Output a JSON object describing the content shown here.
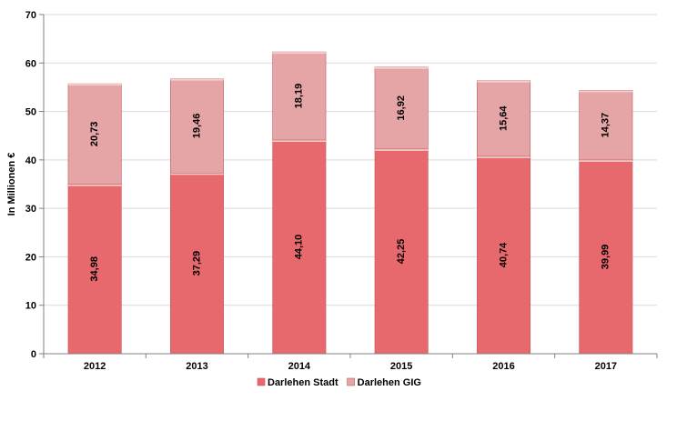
{
  "chart_data": {
    "type": "bar",
    "stacked": true,
    "categories": [
      "2012",
      "2013",
      "2014",
      "2015",
      "2016",
      "2017"
    ],
    "series": [
      {
        "name": "Darlehen Stadt",
        "values": [
          34.98,
          37.29,
          44.1,
          42.25,
          40.74,
          39.99
        ],
        "labels": [
          "34,98",
          "37,29",
          "44,10",
          "42,25",
          "40,74",
          "39,99"
        ],
        "color": "#e8696d"
      },
      {
        "name": "Darlehen GIG",
        "values": [
          20.73,
          19.46,
          18.19,
          16.92,
          15.64,
          14.37
        ],
        "labels": [
          "20,73",
          "19,46",
          "18,19",
          "16,92",
          "15,64",
          "14,37"
        ],
        "color": "#e5a4a5"
      }
    ],
    "yticks": [
      "0",
      "10",
      "20",
      "30",
      "40",
      "50",
      "60",
      "70"
    ],
    "ylim": [
      0,
      70
    ],
    "ylabel": "In  Millionen €",
    "xlabel": "",
    "title": "",
    "legend_position": "bottom",
    "grid": true
  }
}
